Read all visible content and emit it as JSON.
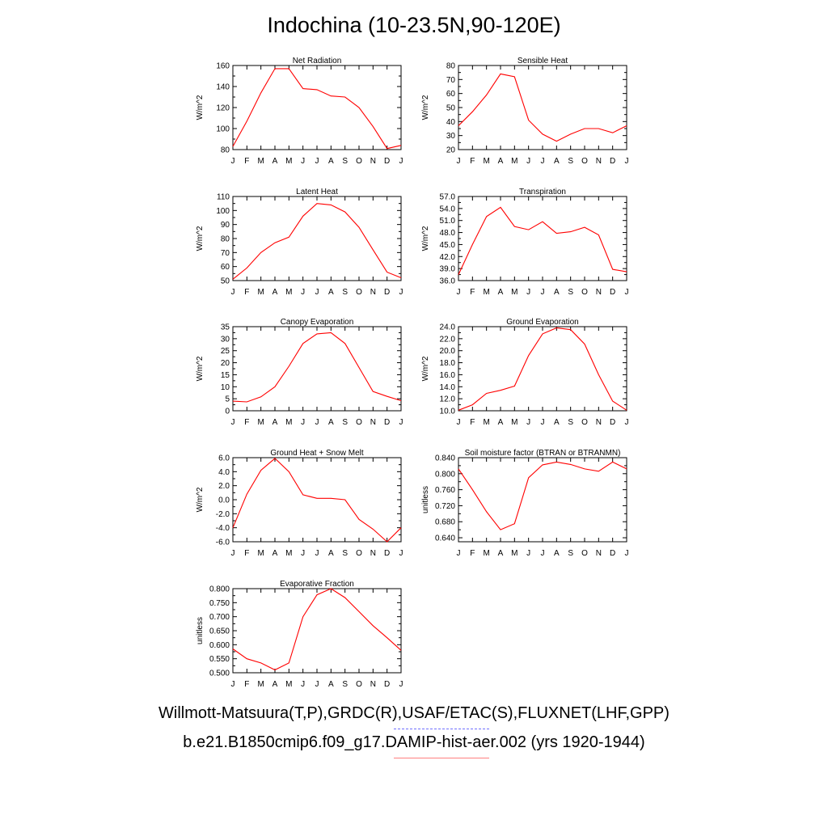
{
  "title": "Indochina (10-23.5N,90-120E)",
  "month_labels": [
    "J",
    "F",
    "M",
    "A",
    "M",
    "J",
    "J",
    "A",
    "S",
    "O",
    "N",
    "D",
    "J"
  ],
  "legend": {
    "observations_label": "Willmott-Matsuura(T,P),GRDC(R),USAF/ETAC(S),FLUXNET(LHF,GPP)",
    "observations_color": "#7070ff",
    "model_label": "b.e21.B1850cmip6.f09_g17.DAMIP-hist-aer.002 (yrs 1920-1944)",
    "model_color": "#ff0000"
  },
  "chart_data": [
    {
      "type": "line",
      "title": "Net Radiation",
      "ylabel": "W/m^2",
      "yticks": [
        "80",
        "100",
        "120",
        "140",
        "160"
      ],
      "ylim": [
        80,
        160
      ],
      "series": [
        {
          "color": "#ff0000",
          "values": [
            83,
            107,
            134,
            157,
            157,
            138,
            137,
            131,
            130,
            120,
            102,
            81,
            84
          ]
        }
      ]
    },
    {
      "type": "line",
      "title": "Sensible Heat",
      "ylabel": "W/m^2",
      "yticks": [
        "20",
        "30",
        "40",
        "50",
        "60",
        "70",
        "80"
      ],
      "ylim": [
        20,
        80
      ],
      "series": [
        {
          "color": "#ff0000",
          "values": [
            37,
            47,
            59,
            74,
            72,
            41,
            31,
            26,
            31,
            35,
            35,
            32,
            37
          ]
        }
      ]
    },
    {
      "type": "line",
      "title": "Latent Heat",
      "ylabel": "W/m^2",
      "yticks": [
        "50",
        "60",
        "70",
        "80",
        "90",
        "100",
        "110"
      ],
      "ylim": [
        50,
        110
      ],
      "series": [
        {
          "color": "#ff0000",
          "values": [
            51,
            59,
            70,
            77,
            81,
            96,
            105,
            104,
            99,
            88,
            72,
            56,
            52
          ]
        }
      ]
    },
    {
      "type": "line",
      "title": "Transpiration",
      "ylabel": "W/m^2",
      "yticks": [
        "36.0",
        "39.0",
        "42.0",
        "45.0",
        "48.0",
        "51.0",
        "54.0",
        "57.0"
      ],
      "ylim": [
        36,
        57
      ],
      "series": [
        {
          "color": "#ff0000",
          "values": [
            37.5,
            45,
            52,
            54.3,
            49.5,
            48.7,
            50.7,
            47.8,
            48.2,
            49.3,
            47.4,
            38.8,
            38.2
          ]
        }
      ]
    },
    {
      "type": "line",
      "title": "Canopy Evaporation",
      "ylabel": "W/m^2",
      "yticks": [
        "0",
        "5",
        "10",
        "15",
        "20",
        "25",
        "30",
        "35"
      ],
      "ylim": [
        0,
        35
      ],
      "series": [
        {
          "color": "#ff0000",
          "values": [
            4,
            3.7,
            5.8,
            10,
            18.5,
            28,
            32,
            32.5,
            28,
            18,
            8,
            6,
            4.2
          ]
        }
      ]
    },
    {
      "type": "line",
      "title": "Ground Evaporation",
      "ylabel": "W/m^2",
      "yticks": [
        "10.0",
        "12.0",
        "14.0",
        "16.0",
        "18.0",
        "20.0",
        "22.0",
        "24.0"
      ],
      "ylim": [
        10,
        24
      ],
      "series": [
        {
          "color": "#ff0000",
          "values": [
            10.1,
            11,
            12.9,
            13.4,
            14.1,
            19.2,
            22.8,
            23.8,
            23.5,
            21.1,
            16,
            11.6,
            10.1
          ]
        }
      ]
    },
    {
      "type": "line",
      "title": "Ground Heat + Snow Melt",
      "ylabel": "W/m^2",
      "yticks": [
        "-6.0",
        "-4.0",
        "-2.0",
        "0.0",
        "2.0",
        "4.0",
        "6.0"
      ],
      "ylim": [
        -6,
        6
      ],
      "series": [
        {
          "color": "#ff0000",
          "values": [
            -4,
            0.8,
            4.2,
            5.9,
            4,
            0.7,
            0.2,
            0.2,
            0,
            -2.8,
            -4.2,
            -6,
            -4
          ]
        }
      ]
    },
    {
      "type": "line",
      "title": "Soil moisture factor (BTRAN or BTRANMN)",
      "ylabel": "unitless",
      "yticks": [
        "0.640",
        "0.680",
        "0.720",
        "0.760",
        "0.800",
        "0.840"
      ],
      "ylim": [
        0.63,
        0.84
      ],
      "series": [
        {
          "color": "#ff0000",
          "values": [
            0.812,
            0.76,
            0.705,
            0.66,
            0.675,
            0.79,
            0.822,
            0.829,
            0.823,
            0.812,
            0.806,
            0.829,
            0.812
          ]
        }
      ]
    },
    {
      "type": "line",
      "title": "Evaporative Fraction",
      "ylabel": "unitless",
      "yticks": [
        "0.500",
        "0.550",
        "0.600",
        "0.650",
        "0.700",
        "0.750",
        "0.800"
      ],
      "ylim": [
        0.5,
        0.8
      ],
      "series": [
        {
          "color": "#ff0000",
          "values": [
            0.585,
            0.55,
            0.535,
            0.51,
            0.535,
            0.7,
            0.778,
            0.8,
            0.768,
            0.718,
            0.668,
            0.625,
            0.58
          ]
        }
      ]
    }
  ]
}
